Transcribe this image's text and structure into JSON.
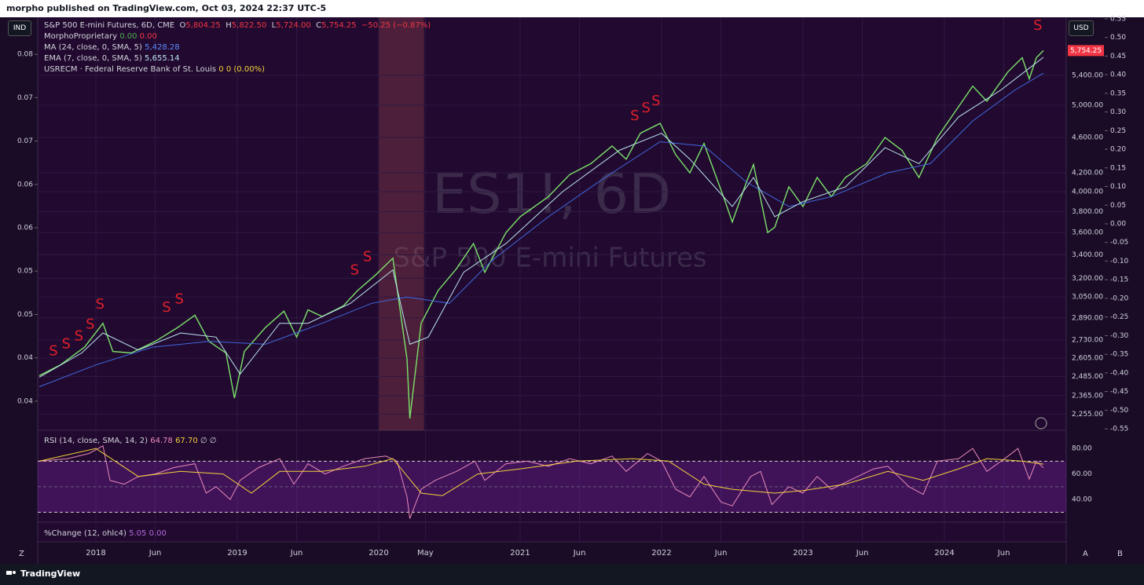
{
  "page": {
    "header": "morpho published on TradingView.com, Oct 03, 2024 22:37 UTC-5",
    "ind_button": "IND",
    "usd_button": "USD",
    "legend": {
      "symbol": "S&P 500 E-mini Futures, 6D, CME",
      "o_label": "O",
      "o_value": "5,804.25",
      "h_label": "H",
      "h_value": "5,822.50",
      "l_label": "L",
      "l_value": "5,724.00",
      "c_label": "C",
      "c_value": "5,754.25",
      "change": "−50.25 (−0.87%)",
      "morpho": "MorphoProprietary",
      "morpho_v1": "0.00",
      "morpho_v2": "0.00",
      "ma": "MA (24, close, 0, SMA, 5)",
      "ma_value": "5,428.28",
      "ema": "EMA (7, close, 0, SMA, 5)",
      "ema_value": "5,655.14",
      "usrecm": "USRECM · Federal Reserve Bank of St. Louis",
      "usrecm_v1": "0",
      "usrecm_v2": "0 (0.00%)"
    },
    "watermark_symbol": "ES1!, 6D",
    "watermark_name": "S&P 500 E-mini Futures",
    "rsi_legend": {
      "name": "RSI (14, close, SMA, 14, 2)",
      "v1": "64.78",
      "v2": "67.70",
      "v3": "∅ ∅"
    },
    "change_legend": {
      "name": "%Change (12, ohlc4)",
      "v1": "5.05",
      "v2": "0.00"
    },
    "z_button": "Z",
    "a_button": "A",
    "b_button": "B",
    "footer": "TradingView"
  },
  "chart_data": {
    "type": "line",
    "log_scale": true,
    "grid": true,
    "xlim": [
      2017.589,
      2024.861
    ],
    "xticks": [
      2018,
      {
        "value": 2018.42,
        "label": "Jun"
      },
      2019,
      {
        "value": 2019.42,
        "label": "Jun"
      },
      2020,
      {
        "value": 2020.33,
        "label": "May"
      },
      2021,
      {
        "value": 2021.42,
        "label": "Jun"
      },
      2022,
      {
        "value": 2022.42,
        "label": "Jun"
      },
      2023,
      {
        "value": 2023.42,
        "label": "Jun"
      },
      2024,
      {
        "value": 2024.42,
        "label": "Jun"
      }
    ],
    "ylim": [
      2163,
      6270
    ],
    "yticks": [
      {
        "value": 5400,
        "label": "5,400.00"
      },
      {
        "value": 5000,
        "label": "5,000.00"
      },
      {
        "value": 4600,
        "label": "4,600.00"
      },
      {
        "value": 4200,
        "label": "4,200.00"
      },
      {
        "value": 4000,
        "label": "4,000.00"
      },
      {
        "value": 3800,
        "label": "3,800.00"
      },
      {
        "value": 3600,
        "label": "3,600.00"
      },
      {
        "value": 3400,
        "label": "3,400.00"
      },
      {
        "value": 3200,
        "label": "3,200.00"
      },
      {
        "value": 3050,
        "label": "3,050.00"
      },
      {
        "value": 2890,
        "label": "2,890.00"
      },
      {
        "value": 2730,
        "label": "2,730.00"
      },
      {
        "value": 2605,
        "label": "2,605.00"
      },
      {
        "value": 2485,
        "label": "2,485.00"
      },
      {
        "value": 2365,
        "label": "2,365.00"
      },
      {
        "value": 2255,
        "label": "2,255.00"
      }
    ],
    "y2lim": [
      -0.554,
      0.554
    ],
    "y2ticks": [
      0.55,
      {
        "value": 0.5,
        "label": "0.50"
      },
      0.45,
      {
        "value": 0.4,
        "label": "0.40"
      },
      0.35,
      {
        "value": 0.3,
        "label": "0.30"
      },
      0.25,
      {
        "value": 0.2,
        "label": "0.20"
      },
      0.15,
      {
        "value": 0.1,
        "label": "0.10"
      },
      0.05,
      {
        "value": 0,
        "label": "0.00"
      },
      -0.05,
      {
        "value": -0.1,
        "label": "-0.10"
      },
      -0.15,
      {
        "value": -0.2,
        "label": "-0.20"
      },
      -0.25,
      {
        "value": -0.3,
        "label": "-0.30"
      },
      -0.35,
      {
        "value": -0.4,
        "label": "-0.40"
      },
      -0.45,
      {
        "value": -0.5,
        "label": "-0.50"
      },
      -0.55
    ],
    "y3lim": [
      0.0323,
      0.0847
    ],
    "y3ticks": [
      0.08,
      {
        "value": 0.0745,
        "label": "0.07"
      },
      {
        "value": 0.069,
        "label": "0.07"
      },
      {
        "value": 0.0635,
        "label": "0.06"
      },
      {
        "value": 0.058,
        "label": "0.06"
      },
      {
        "value": 0.0525,
        "label": "0.05"
      },
      {
        "value": 0.047,
        "label": "0.05"
      },
      {
        "value": 0.0415,
        "label": "0.04"
      },
      {
        "value": 0.036,
        "label": "0.04"
      }
    ],
    "last_price": {
      "value": 5754.25,
      "label": "5,754.25"
    },
    "recession_span": [
      2020.0,
      2020.32
    ],
    "series": [
      {
        "name": "S&P 500 E-mini Futures",
        "color": "#7be36b",
        "x": [
          2017.6,
          2017.75,
          2017.92,
          2018.05,
          2018.12,
          2018.25,
          2018.42,
          2018.58,
          2018.7,
          2018.8,
          2018.92,
          2018.98,
          2019.05,
          2019.2,
          2019.33,
          2019.42,
          2019.5,
          2019.6,
          2019.75,
          2019.85,
          2019.98,
          2020.1,
          2020.2,
          2020.22,
          2020.3,
          2020.42,
          2020.55,
          2020.67,
          2020.75,
          2020.9,
          2021.0,
          2021.2,
          2021.35,
          2021.5,
          2021.65,
          2021.75,
          2021.85,
          2021.99,
          2022.1,
          2022.2,
          2022.3,
          2022.45,
          2022.5,
          2022.6,
          2022.65,
          2022.75,
          2022.8,
          2022.9,
          2023.0,
          2023.1,
          2023.2,
          2023.3,
          2023.45,
          2023.58,
          2023.7,
          2023.82,
          2023.95,
          2024.05,
          2024.2,
          2024.3,
          2024.45,
          2024.55,
          2024.6,
          2024.65,
          2024.7
        ],
        "values": [
          2490,
          2560,
          2680,
          2850,
          2650,
          2640,
          2720,
          2820,
          2910,
          2720,
          2640,
          2350,
          2650,
          2820,
          2940,
          2750,
          2950,
          2900,
          2980,
          3100,
          3230,
          3370,
          2600,
          2230,
          2850,
          3100,
          3280,
          3500,
          3250,
          3600,
          3750,
          3950,
          4180,
          4300,
          4500,
          4350,
          4650,
          4770,
          4400,
          4200,
          4530,
          3900,
          3700,
          4100,
          4290,
          3600,
          3650,
          4050,
          3850,
          4150,
          3950,
          4150,
          4300,
          4600,
          4450,
          4150,
          4600,
          4850,
          5250,
          5050,
          5450,
          5650,
          5350,
          5650,
          5754.25
        ]
      },
      {
        "name": "MA (24, close, 0, SMA, 5)",
        "color": "#3f6ae0",
        "x": [
          2017.6,
          2018.0,
          2018.4,
          2018.8,
          2019.2,
          2019.6,
          2019.95,
          2020.2,
          2020.5,
          2020.8,
          2021.2,
          2021.6,
          2021.99,
          2022.3,
          2022.6,
          2022.9,
          2023.2,
          2023.6,
          2023.9,
          2024.2,
          2024.5,
          2024.7
        ],
        "values": [
          2420,
          2560,
          2680,
          2720,
          2700,
          2850,
          3000,
          3050,
          3000,
          3350,
          3750,
          4150,
          4550,
          4500,
          4100,
          3850,
          3950,
          4200,
          4300,
          4800,
          5200,
          5428.28
        ]
      },
      {
        "name": "EMA (7, close, 0, SMA, 5)",
        "color": "#b9e6ef",
        "x": [
          2017.6,
          2017.9,
          2018.05,
          2018.3,
          2018.6,
          2018.85,
          2019.02,
          2019.3,
          2019.5,
          2019.8,
          2020.1,
          2020.22,
          2020.35,
          2020.6,
          2020.9,
          2021.3,
          2021.7,
          2022.0,
          2022.2,
          2022.5,
          2022.65,
          2022.8,
          2023.0,
          2023.3,
          2023.58,
          2023.82,
          2024.1,
          2024.4,
          2024.6,
          2024.7
        ],
        "values": [
          2480,
          2640,
          2780,
          2660,
          2780,
          2750,
          2500,
          2850,
          2850,
          3000,
          3270,
          2700,
          2750,
          3250,
          3500,
          4000,
          4450,
          4650,
          4350,
          3850,
          4150,
          3750,
          3900,
          4050,
          4480,
          4300,
          4850,
          5200,
          5500,
          5655.14
        ]
      }
    ],
    "signal_label": "S",
    "signal_color": "#e0202a",
    "signals": {
      "x": [
        2017.7,
        2017.79,
        2017.88,
        2017.96,
        2018.03,
        2018.5,
        2018.59,
        2019.83,
        2019.92,
        2021.81,
        2021.89,
        2021.96,
        2024.66
      ],
      "y": [
        2650,
        2700,
        2755,
        2840,
        2990,
        2965,
        3030,
        3265,
        3380,
        4860,
        4960,
        5050,
        6135
      ]
    },
    "rsi": {
      "ylim": [
        22.2,
        94.2
      ],
      "yticks": [
        {
          "value": 80,
          "label": "80.00"
        },
        {
          "value": 60,
          "label": "60.00"
        },
        {
          "value": 40,
          "label": "40.00"
        }
      ],
      "bands": [
        70,
        50,
        30
      ],
      "series": [
        {
          "name": "RSI",
          "color": "#e88ab8",
          "x": [
            2017.6,
            2017.8,
            2017.95,
            2018.05,
            2018.1,
            2018.2,
            2018.3,
            2018.42,
            2018.55,
            2018.7,
            2018.78,
            2018.85,
            2018.95,
            2019.02,
            2019.15,
            2019.3,
            2019.4,
            2019.5,
            2019.62,
            2019.75,
            2019.9,
            2020.05,
            2020.13,
            2020.2,
            2020.22,
            2020.3,
            2020.4,
            2020.55,
            2020.68,
            2020.75,
            2020.9,
            2021.05,
            2021.2,
            2021.35,
            2021.5,
            2021.65,
            2021.75,
            2021.9,
            2022.0,
            2022.1,
            2022.2,
            2022.3,
            2022.42,
            2022.5,
            2022.63,
            2022.7,
            2022.78,
            2022.9,
            2023.0,
            2023.1,
            2023.2,
            2023.35,
            2023.5,
            2023.6,
            2023.75,
            2023.85,
            2023.95,
            2024.1,
            2024.2,
            2024.3,
            2024.45,
            2024.52,
            2024.6,
            2024.65,
            2024.7
          ],
          "values": [
            70,
            72,
            76,
            82,
            55,
            52,
            58,
            60,
            65,
            68,
            45,
            50,
            40,
            55,
            65,
            72,
            52,
            68,
            60,
            66,
            72,
            74,
            70,
            42,
            25,
            48,
            55,
            62,
            70,
            55,
            68,
            70,
            66,
            72,
            68,
            74,
            62,
            76,
            70,
            48,
            42,
            58,
            38,
            35,
            58,
            62,
            36,
            50,
            45,
            58,
            48,
            56,
            64,
            66,
            50,
            44,
            70,
            72,
            80,
            62,
            74,
            80,
            56,
            70,
            64.78
          ]
        },
        {
          "name": "RSI MA",
          "color": "#f2d13a",
          "x": [
            2017.6,
            2018.0,
            2018.3,
            2018.6,
            2018.9,
            2019.1,
            2019.3,
            2019.6,
            2019.9,
            2020.1,
            2020.3,
            2020.45,
            2020.7,
            2021.0,
            2021.4,
            2021.8,
            2022.05,
            2022.3,
            2022.5,
            2022.8,
            2023.0,
            2023.3,
            2023.6,
            2023.85,
            2024.1,
            2024.3,
            2024.55,
            2024.7
          ],
          "values": [
            70,
            80,
            58,
            62,
            60,
            45,
            62,
            62,
            66,
            72,
            45,
            43,
            60,
            64,
            70,
            72,
            70,
            52,
            48,
            45,
            47,
            52,
            62,
            55,
            64,
            72,
            70,
            67.7
          ]
        }
      ]
    }
  }
}
